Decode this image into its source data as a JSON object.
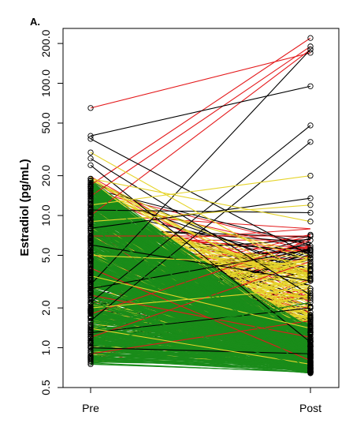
{
  "colors": {
    "red": "#e41a1c",
    "yellow": "#e5d42a",
    "green": "#1a8c1a",
    "black": "#000000"
  },
  "chart_data": {
    "type": "line",
    "panel_label": "A.",
    "ylabel": "Estradiol (pg/mL)",
    "xlabel": "",
    "y_scale": "log",
    "ylim": [
      0.5,
      260
    ],
    "categories": [
      "Pre",
      "Post"
    ],
    "yticks": [
      0.5,
      1.0,
      2.0,
      5.0,
      10.0,
      20.0,
      50.0,
      100.0,
      200.0
    ],
    "ytick_labels": [
      "0.5",
      "1.0",
      "2.0",
      "5.0",
      "10.0",
      "20.0",
      "50.0",
      "100.0",
      "200.0"
    ],
    "grid": false,
    "legend": "none",
    "series": [
      {
        "group": "red",
        "pre": 65,
        "post": 170
      },
      {
        "group": "red",
        "pre": 17,
        "post": 220
      },
      {
        "group": "red",
        "pre": 14,
        "post": 190
      },
      {
        "group": "red",
        "pre": 10,
        "post": 180
      },
      {
        "group": "red",
        "pre": 7,
        "post": 7
      },
      {
        "group": "red",
        "pre": 4,
        "post": 0.8
      },
      {
        "group": "red",
        "pre": 2.5,
        "post": 1.2
      },
      {
        "group": "red",
        "pre": 1.8,
        "post": 6.5
      },
      {
        "group": "red",
        "pre": 1.2,
        "post": 4.5
      },
      {
        "group": "red",
        "pre": 0.9,
        "post": 1.6
      },
      {
        "group": "black",
        "pre": 40,
        "post": 95
      },
      {
        "group": "black",
        "pre": 38,
        "post": 5.0
      },
      {
        "group": "black",
        "pre": 27,
        "post": 2.5
      },
      {
        "group": "black",
        "pre": 24,
        "post": 1.1
      },
      {
        "group": "black",
        "pre": 11,
        "post": 10.5
      },
      {
        "group": "black",
        "pre": 8,
        "post": 13.5
      },
      {
        "group": "black",
        "pre": 3,
        "post": 180
      },
      {
        "group": "black",
        "pre": 2.2,
        "post": 48
      },
      {
        "group": "black",
        "pre": 1.6,
        "post": 36
      },
      {
        "group": "black",
        "pre": 6,
        "post": 3.2
      },
      {
        "group": "black",
        "pre": 2.8,
        "post": 5.5
      },
      {
        "group": "black",
        "pre": 1.3,
        "post": 2.0
      },
      {
        "group": "black",
        "pre": 1.0,
        "post": 0.9
      },
      {
        "group": "yellow",
        "pre": 30,
        "post": 3.5
      },
      {
        "group": "yellow",
        "pre": 19,
        "post": 9.0
      },
      {
        "group": "yellow",
        "pre": 12,
        "post": 20
      },
      {
        "group": "yellow",
        "pre": 9,
        "post": 12
      },
      {
        "group": "yellow",
        "pre": 5,
        "post": 4.2
      },
      {
        "group": "yellow",
        "pre": 3.5,
        "post": 1.4
      },
      {
        "group": "yellow",
        "pre": 2.0,
        "post": 2.8
      },
      {
        "group": "yellow",
        "pre": 1.4,
        "post": 0.75
      },
      {
        "group": "green",
        "pre": 16,
        "post": 0.65
      },
      {
        "group": "green",
        "pre": 8,
        "post": 0.9
      },
      {
        "group": "green",
        "pre": 4.5,
        "post": 1.5
      },
      {
        "group": "green",
        "pre": 2.2,
        "post": 0.7
      },
      {
        "group": "green",
        "pre": 1.1,
        "post": 2.2
      },
      {
        "group": "green",
        "pre": 0.75,
        "post": 0.66
      }
    ],
    "density_groups": [
      {
        "group": "red",
        "count": 70,
        "pre_min": 0.75,
        "pre_max": 20,
        "post_min": 0.7,
        "post_max": 8
      },
      {
        "group": "black",
        "count": 60,
        "pre_min": 0.75,
        "pre_max": 20,
        "post_min": 0.7,
        "post_max": 7
      },
      {
        "group": "yellow",
        "count": 160,
        "pre_min": 0.75,
        "pre_max": 20,
        "post_min": 0.65,
        "post_max": 5
      },
      {
        "group": "green",
        "count": 650,
        "pre_min": 0.75,
        "pre_max": 19,
        "post_min": 0.64,
        "post_max": 1.6
      }
    ]
  }
}
